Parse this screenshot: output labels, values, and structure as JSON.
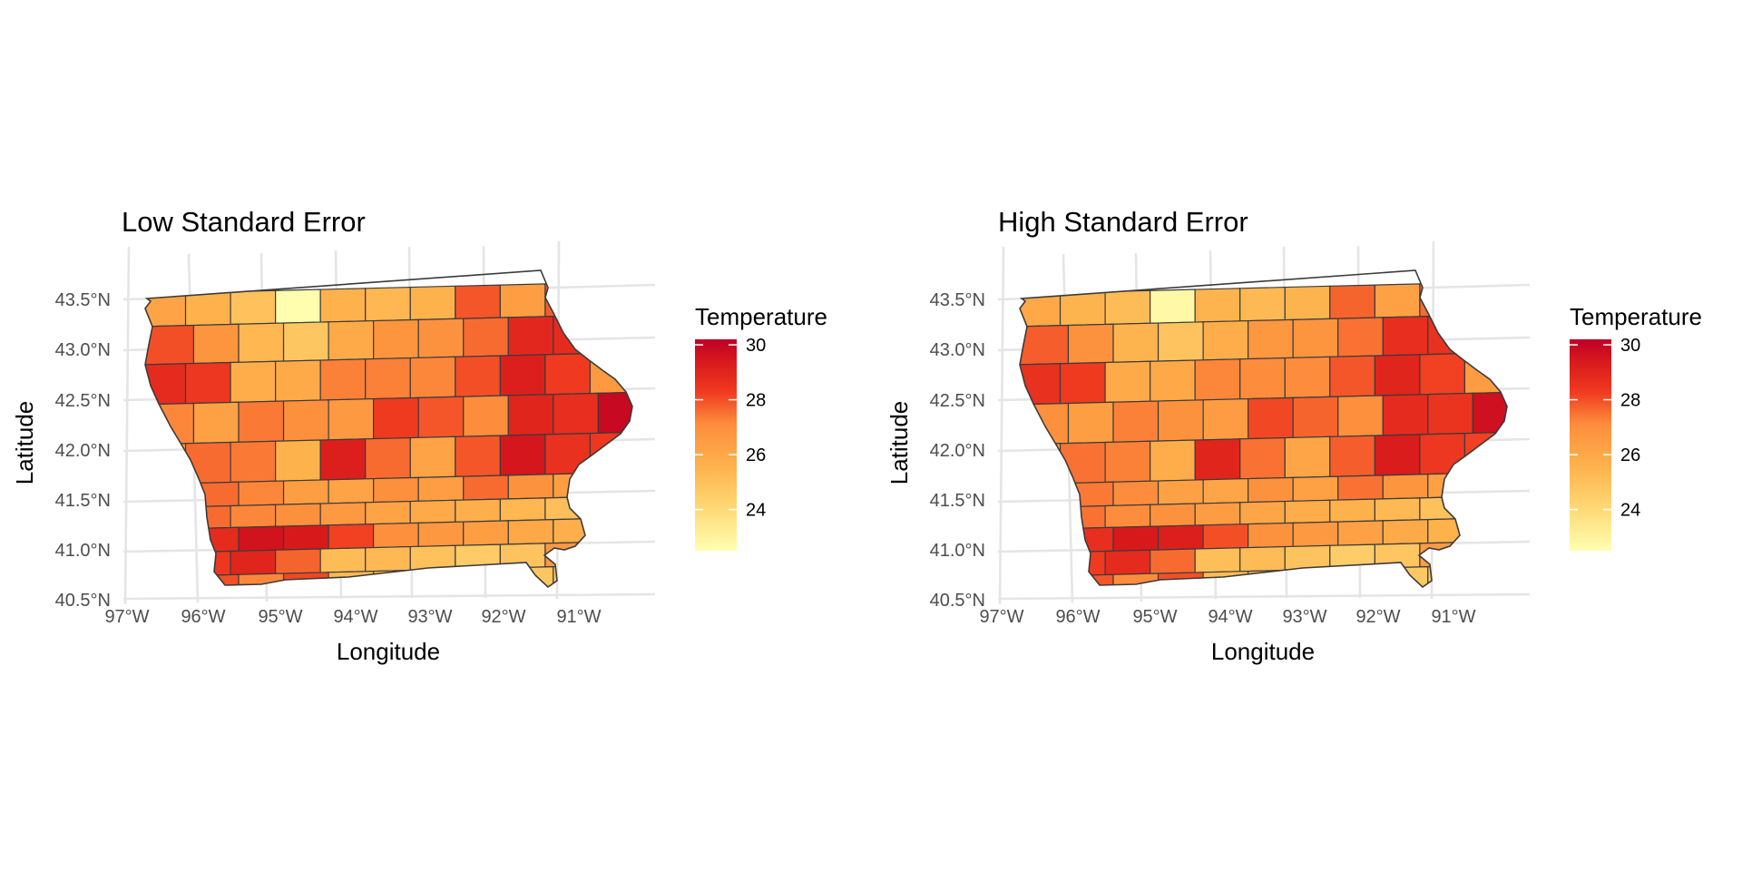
{
  "chart_data": [
    {
      "type": "choropleth map",
      "title": "Low Standard Error",
      "xlabel": "Longitude",
      "ylabel": "Latitude",
      "x_ticks": [
        "97°W",
        "96°W",
        "95°W",
        "94°W",
        "93°W",
        "92°W",
        "91°W"
      ],
      "y_ticks": [
        "40.5°N",
        "41.0°N",
        "41.5°N",
        "42.0°N",
        "42.5°N",
        "43.0°N",
        "43.5°N"
      ],
      "grid": true,
      "legend": {
        "title": "Temperature",
        "placement": "right",
        "ticks": [
          "24",
          "26",
          "28",
          "30"
        ],
        "range": [
          22.5,
          30.2
        ]
      },
      "colors": [
        "#ffffb2",
        "#fecc5c",
        "#fd8d3c",
        "#f03b20",
        "#bd0026"
      ],
      "counties": [
        [
          26.2,
          25.6,
          25.0,
          22.6,
          25.6,
          25.4,
          25.6,
          27.9,
          26.4,
          27.8,
          25.6
        ],
        [
          28.0,
          26.8,
          25.4,
          24.8,
          25.9,
          26.8,
          26.9,
          27.6,
          28.9,
          28.8,
          27.6
        ],
        [
          28.8,
          28.4,
          25.8,
          25.9,
          27.3,
          27.3,
          27.2,
          28.0,
          29.2,
          28.3,
          26.6
        ],
        [
          27.2,
          26.3,
          27.4,
          27.0,
          26.6,
          28.3,
          27.9,
          27.1,
          29.0,
          28.7,
          29.9
        ],
        [
          26.4,
          27.6,
          27.4,
          25.6,
          29.2,
          27.6,
          26.2,
          27.9,
          29.5,
          28.6,
          28.4
        ],
        [
          26.6,
          27.6,
          27.2,
          26.4,
          26.2,
          27.0,
          26.4,
          27.6,
          26.9,
          26.4,
          28.8
        ],
        [
          27.4,
          27.6,
          27.2,
          27.0,
          26.6,
          26.2,
          25.9,
          25.7,
          25.4,
          25.1,
          27.2
        ],
        [
          28.2,
          28.8,
          29.6,
          29.4,
          28.2,
          27.0,
          26.7,
          26.4,
          26.0,
          25.7,
          27.1
        ],
        [
          27.4,
          28.4,
          29.0,
          27.7,
          25.2,
          25.3,
          25.0,
          24.6,
          24.9,
          26.6,
          26.2
        ],
        [
          28.6,
          28.0,
          27.2,
          28.1,
          25.3,
          25.7,
          23.2,
          25.0,
          24.8,
          24.6,
          24.1
        ]
      ]
    },
    {
      "type": "choropleth map",
      "title": "High Standard Error",
      "xlabel": "Longitude",
      "ylabel": "Latitude",
      "x_ticks": [
        "97°W",
        "96°W",
        "95°W",
        "94°W",
        "93°W",
        "92°W",
        "91°W"
      ],
      "y_ticks": [
        "40.5°N",
        "41.0°N",
        "41.5°N",
        "42.0°N",
        "42.5°N",
        "43.0°N",
        "43.5°N"
      ],
      "grid": true,
      "legend": {
        "title": "Temperature",
        "placement": "right",
        "ticks": [
          "24",
          "26",
          "28",
          "30"
        ],
        "range": [
          22.5,
          30.2
        ]
      },
      "colors": [
        "#ffffb2",
        "#fecc5c",
        "#fd8d3c",
        "#f03b20",
        "#bd0026"
      ],
      "counties": [
        [
          26.0,
          25.5,
          25.2,
          22.8,
          25.5,
          25.3,
          25.5,
          27.7,
          26.3,
          27.6,
          25.7
        ],
        [
          27.8,
          26.9,
          25.5,
          24.9,
          25.8,
          26.7,
          26.8,
          27.5,
          28.7,
          28.6,
          27.5
        ],
        [
          28.6,
          28.3,
          25.9,
          26.0,
          27.2,
          27.1,
          27.1,
          27.9,
          29.0,
          28.2,
          26.5
        ],
        [
          27.0,
          26.4,
          27.3,
          26.9,
          26.5,
          28.1,
          27.7,
          27.0,
          28.8,
          28.5,
          29.7
        ],
        [
          26.3,
          27.5,
          27.3,
          25.8,
          29.0,
          27.5,
          26.1,
          27.8,
          29.3,
          28.4,
          28.2
        ],
        [
          26.5,
          27.4,
          27.1,
          26.3,
          26.1,
          26.9,
          26.3,
          27.5,
          26.8,
          26.3,
          28.6
        ],
        [
          27.3,
          27.5,
          27.1,
          26.9,
          26.5,
          26.1,
          25.8,
          25.6,
          25.3,
          25.0,
          27.1
        ],
        [
          28.0,
          28.7,
          29.4,
          29.2,
          28.0,
          26.9,
          26.6,
          26.3,
          25.9,
          25.6,
          27.0
        ],
        [
          27.3,
          28.3,
          28.8,
          27.6,
          25.1,
          25.2,
          24.9,
          24.5,
          24.8,
          26.5,
          26.1
        ],
        [
          28.4,
          27.9,
          27.1,
          28.0,
          25.2,
          25.6,
          23.4,
          24.9,
          24.7,
          24.5,
          24.2
        ]
      ]
    }
  ]
}
